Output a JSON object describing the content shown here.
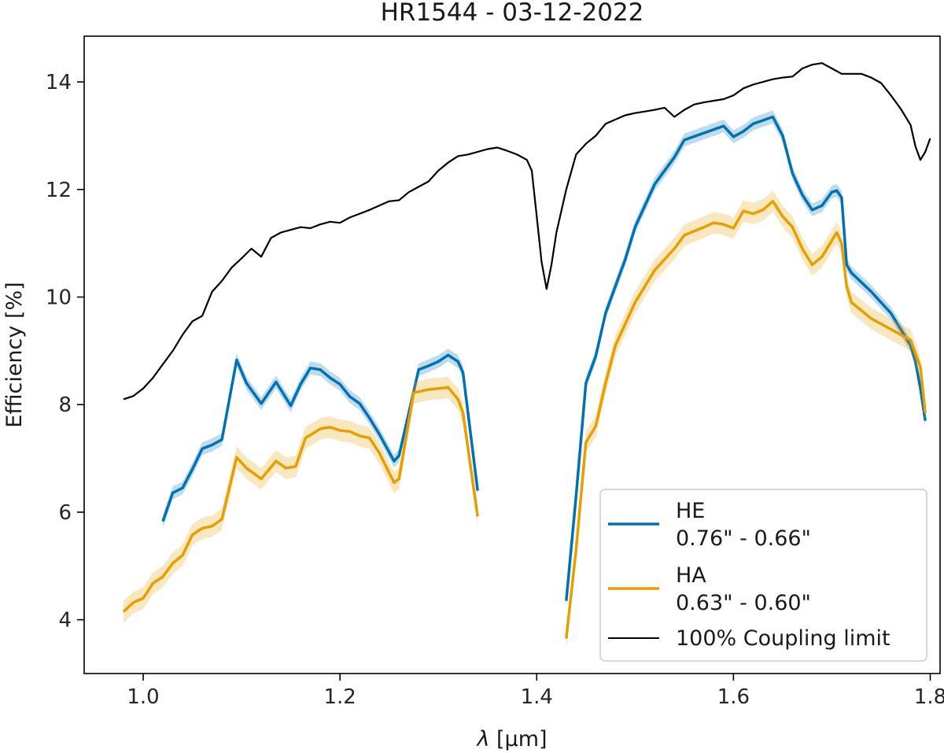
{
  "chart_data": {
    "type": "line",
    "title": "HR1544 - 03-12-2022",
    "xlabel_symbol": "λ",
    "xlabel_unit": " [μm]",
    "ylabel": "Efficiency [%]",
    "xlim": [
      0.94,
      1.81
    ],
    "ylim": [
      3.0,
      14.85
    ],
    "xticks": [
      1.0,
      1.2,
      1.4,
      1.6,
      1.8
    ],
    "xtick_labels": [
      "1.0",
      "1.2",
      "1.4",
      "1.6",
      "1.8"
    ],
    "yticks": [
      4,
      6,
      8,
      10,
      12,
      14
    ],
    "ytick_labels": [
      "4",
      "6",
      "8",
      "10",
      "12",
      "14"
    ],
    "grid": false,
    "legend_position": "lower-right",
    "series": [
      {
        "name": "HE",
        "subtitle": "0.76\" - 0.66\"",
        "color": "#0072b2",
        "band": 0.12,
        "segments": [
          [
            [
              1.02,
              5.83
            ],
            [
              1.03,
              6.36
            ],
            [
              1.04,
              6.45
            ],
            [
              1.05,
              6.8
            ],
            [
              1.06,
              7.18
            ],
            [
              1.07,
              7.25
            ],
            [
              1.08,
              7.35
            ],
            [
              1.095,
              8.83
            ],
            [
              1.105,
              8.4
            ],
            [
              1.12,
              8.02
            ],
            [
              1.135,
              8.42
            ],
            [
              1.15,
              7.98
            ],
            [
              1.16,
              8.38
            ],
            [
              1.17,
              8.68
            ],
            [
              1.18,
              8.65
            ],
            [
              1.19,
              8.5
            ],
            [
              1.2,
              8.38
            ],
            [
              1.21,
              8.15
            ],
            [
              1.22,
              8.02
            ],
            [
              1.23,
              7.75
            ],
            [
              1.24,
              7.45
            ],
            [
              1.255,
              6.95
            ],
            [
              1.26,
              7.05
            ],
            [
              1.28,
              8.65
            ],
            [
              1.29,
              8.72
            ],
            [
              1.3,
              8.8
            ],
            [
              1.31,
              8.92
            ],
            [
              1.32,
              8.8
            ],
            [
              1.325,
              8.6
            ],
            [
              1.34,
              6.4
            ]
          ],
          [
            [
              1.43,
              4.35
            ],
            [
              1.44,
              6.3
            ],
            [
              1.45,
              8.4
            ],
            [
              1.46,
              8.9
            ],
            [
              1.47,
              9.7
            ],
            [
              1.48,
              10.2
            ],
            [
              1.49,
              10.7
            ],
            [
              1.5,
              11.3
            ],
            [
              1.52,
              12.1
            ],
            [
              1.54,
              12.6
            ],
            [
              1.55,
              12.92
            ],
            [
              1.57,
              13.05
            ],
            [
              1.59,
              13.18
            ],
            [
              1.6,
              12.98
            ],
            [
              1.61,
              13.08
            ],
            [
              1.62,
              13.22
            ],
            [
              1.64,
              13.35
            ],
            [
              1.65,
              13.0
            ],
            [
              1.66,
              12.3
            ],
            [
              1.67,
              11.9
            ],
            [
              1.68,
              11.62
            ],
            [
              1.69,
              11.7
            ],
            [
              1.7,
              11.95
            ],
            [
              1.705,
              11.98
            ],
            [
              1.71,
              11.85
            ],
            [
              1.715,
              10.6
            ],
            [
              1.72,
              10.45
            ],
            [
              1.74,
              10.1
            ],
            [
              1.76,
              9.7
            ],
            [
              1.78,
              9.1
            ],
            [
              1.785,
              8.8
            ],
            [
              1.79,
              8.3
            ],
            [
              1.795,
              7.7
            ]
          ]
        ]
      },
      {
        "name": "HA",
        "subtitle": "0.63\" - 0.60\"",
        "color": "#e69f00",
        "band": 0.2,
        "segments": [
          [
            [
              0.98,
              4.15
            ],
            [
              0.99,
              4.32
            ],
            [
              1.0,
              4.4
            ],
            [
              1.01,
              4.68
            ],
            [
              1.02,
              4.8
            ],
            [
              1.03,
              5.05
            ],
            [
              1.04,
              5.2
            ],
            [
              1.05,
              5.58
            ],
            [
              1.06,
              5.7
            ],
            [
              1.07,
              5.74
            ],
            [
              1.08,
              5.87
            ],
            [
              1.095,
              7.02
            ],
            [
              1.105,
              6.82
            ],
            [
              1.12,
              6.62
            ],
            [
              1.135,
              6.95
            ],
            [
              1.145,
              6.82
            ],
            [
              1.155,
              6.85
            ],
            [
              1.165,
              7.38
            ],
            [
              1.18,
              7.55
            ],
            [
              1.19,
              7.58
            ],
            [
              1.2,
              7.52
            ],
            [
              1.21,
              7.5
            ],
            [
              1.22,
              7.42
            ],
            [
              1.23,
              7.38
            ],
            [
              1.24,
              7.1
            ],
            [
              1.255,
              6.55
            ],
            [
              1.26,
              6.62
            ],
            [
              1.275,
              8.22
            ],
            [
              1.29,
              8.28
            ],
            [
              1.3,
              8.3
            ],
            [
              1.31,
              8.32
            ],
            [
              1.32,
              8.1
            ],
            [
              1.325,
              7.85
            ],
            [
              1.34,
              5.92
            ]
          ],
          [
            [
              1.43,
              3.65
            ],
            [
              1.44,
              5.3
            ],
            [
              1.45,
              7.3
            ],
            [
              1.46,
              7.6
            ],
            [
              1.47,
              8.4
            ],
            [
              1.48,
              9.1
            ],
            [
              1.49,
              9.5
            ],
            [
              1.5,
              9.9
            ],
            [
              1.52,
              10.5
            ],
            [
              1.54,
              10.9
            ],
            [
              1.55,
              11.15
            ],
            [
              1.57,
              11.3
            ],
            [
              1.58,
              11.38
            ],
            [
              1.59,
              11.35
            ],
            [
              1.6,
              11.28
            ],
            [
              1.61,
              11.6
            ],
            [
              1.62,
              11.55
            ],
            [
              1.63,
              11.62
            ],
            [
              1.64,
              11.78
            ],
            [
              1.65,
              11.5
            ],
            [
              1.66,
              11.3
            ],
            [
              1.67,
              10.9
            ],
            [
              1.68,
              10.6
            ],
            [
              1.69,
              10.75
            ],
            [
              1.7,
              11.05
            ],
            [
              1.705,
              11.2
            ],
            [
              1.71,
              11.0
            ],
            [
              1.715,
              10.2
            ],
            [
              1.72,
              9.9
            ],
            [
              1.74,
              9.6
            ],
            [
              1.76,
              9.4
            ],
            [
              1.78,
              9.2
            ],
            [
              1.79,
              8.7
            ],
            [
              1.795,
              7.85
            ]
          ]
        ]
      },
      {
        "name": "100% Coupling limit",
        "color": "#000000",
        "segments": [
          [
            [
              0.98,
              8.1
            ],
            [
              0.99,
              8.16
            ],
            [
              1.0,
              8.3
            ],
            [
              1.01,
              8.5
            ],
            [
              1.02,
              8.75
            ],
            [
              1.03,
              9.0
            ],
            [
              1.04,
              9.3
            ],
            [
              1.05,
              9.55
            ],
            [
              1.06,
              9.65
            ],
            [
              1.07,
              10.1
            ],
            [
              1.08,
              10.3
            ],
            [
              1.09,
              10.55
            ],
            [
              1.1,
              10.72
            ],
            [
              1.11,
              10.9
            ],
            [
              1.12,
              10.75
            ],
            [
              1.13,
              11.1
            ],
            [
              1.14,
              11.2
            ],
            [
              1.15,
              11.25
            ],
            [
              1.16,
              11.3
            ],
            [
              1.17,
              11.28
            ],
            [
              1.18,
              11.35
            ],
            [
              1.19,
              11.4
            ],
            [
              1.2,
              11.38
            ],
            [
              1.21,
              11.48
            ],
            [
              1.22,
              11.55
            ],
            [
              1.23,
              11.62
            ],
            [
              1.24,
              11.7
            ],
            [
              1.25,
              11.78
            ],
            [
              1.26,
              11.8
            ],
            [
              1.27,
              11.95
            ],
            [
              1.28,
              12.05
            ],
            [
              1.29,
              12.15
            ],
            [
              1.3,
              12.35
            ],
            [
              1.31,
              12.5
            ],
            [
              1.32,
              12.62
            ],
            [
              1.33,
              12.65
            ],
            [
              1.34,
              12.7
            ],
            [
              1.35,
              12.75
            ],
            [
              1.36,
              12.78
            ],
            [
              1.37,
              12.72
            ],
            [
              1.38,
              12.65
            ],
            [
              1.39,
              12.55
            ],
            [
              1.395,
              12.35
            ],
            [
              1.4,
              11.5
            ],
            [
              1.405,
              10.65
            ],
            [
              1.41,
              10.15
            ],
            [
              1.415,
              10.6
            ],
            [
              1.42,
              11.2
            ],
            [
              1.43,
              12.0
            ],
            [
              1.44,
              12.65
            ],
            [
              1.45,
              12.85
            ],
            [
              1.46,
              13.0
            ],
            [
              1.47,
              13.22
            ],
            [
              1.48,
              13.3
            ],
            [
              1.49,
              13.38
            ],
            [
              1.5,
              13.42
            ],
            [
              1.51,
              13.45
            ],
            [
              1.52,
              13.48
            ],
            [
              1.53,
              13.52
            ],
            [
              1.54,
              13.35
            ],
            [
              1.55,
              13.48
            ],
            [
              1.56,
              13.58
            ],
            [
              1.57,
              13.62
            ],
            [
              1.58,
              13.65
            ],
            [
              1.59,
              13.68
            ],
            [
              1.6,
              13.75
            ],
            [
              1.61,
              13.88
            ],
            [
              1.62,
              13.95
            ],
            [
              1.63,
              14.0
            ],
            [
              1.64,
              14.05
            ],
            [
              1.65,
              14.08
            ],
            [
              1.66,
              14.1
            ],
            [
              1.67,
              14.25
            ],
            [
              1.68,
              14.32
            ],
            [
              1.69,
              14.35
            ],
            [
              1.7,
              14.25
            ],
            [
              1.71,
              14.15
            ],
            [
              1.72,
              14.15
            ],
            [
              1.73,
              14.15
            ],
            [
              1.74,
              14.08
            ],
            [
              1.75,
              13.98
            ],
            [
              1.76,
              13.75
            ],
            [
              1.77,
              13.5
            ],
            [
              1.78,
              13.2
            ],
            [
              1.785,
              12.8
            ],
            [
              1.79,
              12.55
            ],
            [
              1.795,
              12.7
            ],
            [
              1.8,
              12.95
            ]
          ]
        ]
      }
    ]
  }
}
